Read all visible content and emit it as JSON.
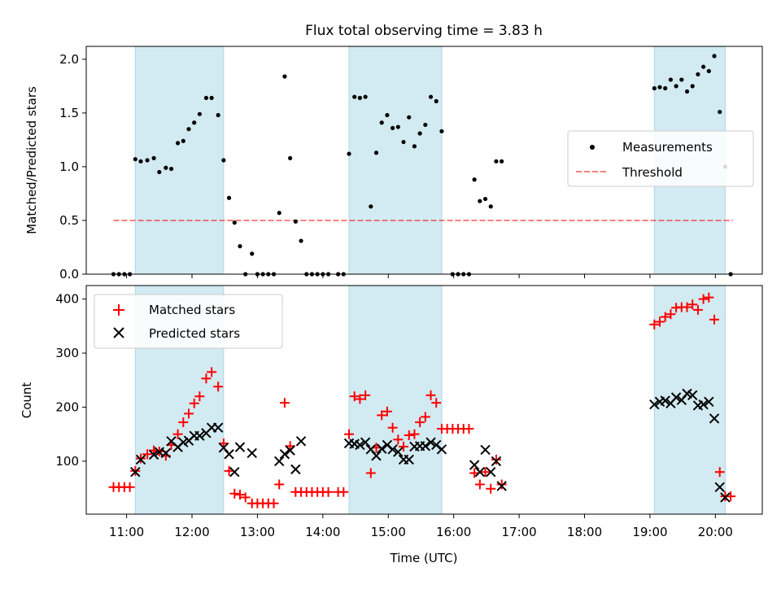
{
  "title": "Flux total observing time = 3.83 h",
  "colors": {
    "shade": "#add8e6",
    "measurement": "#000000",
    "threshold": "#ff0000",
    "matched": "#ff0000",
    "predicted": "#000000"
  },
  "chart_data": [
    {
      "type": "scatter",
      "panel": "top",
      "title": "Flux total observing time = 3.83 h",
      "xlabel": "",
      "ylabel": "Matched/Predicted stars",
      "xlim": [
        "10:23",
        "20:43"
      ],
      "ylim": [
        0,
        2.12
      ],
      "yticks": [
        0.0,
        0.5,
        1.0,
        1.5,
        2.0
      ],
      "ytick_labels": [
        "0.0",
        "0.5",
        "1.0",
        "1.5",
        "2.0"
      ],
      "grid": false,
      "legend": "center-right",
      "shaded_intervals": [
        [
          "11:08",
          "12:29"
        ],
        [
          "14:24",
          "15:49"
        ],
        [
          "19:04",
          "20:09"
        ]
      ],
      "threshold": {
        "name": "Threshold",
        "y": 0.5,
        "x_range": [
          "10:48",
          "20:16"
        ],
        "style": "dashed"
      },
      "series": [
        {
          "name": "Measurements",
          "marker": "dot",
          "points": [
            [
              "10:48",
              0.0
            ],
            [
              "10:53",
              0.0
            ],
            [
              "10:58",
              0.0
            ],
            [
              "11:03",
              0.0
            ],
            [
              "11:08",
              1.07
            ],
            [
              "11:13",
              1.05
            ],
            [
              "11:19",
              1.06
            ],
            [
              "11:25",
              1.08
            ],
            [
              "11:30",
              0.95
            ],
            [
              "11:36",
              0.99
            ],
            [
              "11:41",
              0.98
            ],
            [
              "11:47",
              1.22
            ],
            [
              "11:52",
              1.24
            ],
            [
              "11:57",
              1.35
            ],
            [
              "12:02",
              1.41
            ],
            [
              "12:07",
              1.49
            ],
            [
              "12:13",
              1.64
            ],
            [
              "12:18",
              1.64
            ],
            [
              "12:24",
              1.48
            ],
            [
              "12:29",
              1.06
            ],
            [
              "12:34",
              0.71
            ],
            [
              "12:39",
              0.48
            ],
            [
              "12:44",
              0.26
            ],
            [
              "12:49",
              0.0
            ],
            [
              "12:55",
              0.19
            ],
            [
              "13:00",
              0.0
            ],
            [
              "13:05",
              0.0
            ],
            [
              "13:10",
              0.0
            ],
            [
              "13:15",
              0.0
            ],
            [
              "13:20",
              0.57
            ],
            [
              "13:25",
              1.84
            ],
            [
              "13:30",
              1.08
            ],
            [
              "13:35",
              0.49
            ],
            [
              "13:40",
              0.31
            ],
            [
              "13:45",
              0.0
            ],
            [
              "13:50",
              0.0
            ],
            [
              "13:55",
              0.0
            ],
            [
              "14:00",
              0.0
            ],
            [
              "14:05",
              0.0
            ],
            [
              "14:14",
              0.0
            ],
            [
              "14:19",
              0.0
            ],
            [
              "14:24",
              1.12
            ],
            [
              "14:29",
              1.65
            ],
            [
              "14:34",
              1.64
            ],
            [
              "14:39",
              1.65
            ],
            [
              "14:44",
              0.63
            ],
            [
              "14:49",
              1.13
            ],
            [
              "14:54",
              1.41
            ],
            [
              "14:59",
              1.48
            ],
            [
              "15:04",
              1.36
            ],
            [
              "15:09",
              1.37
            ],
            [
              "15:14",
              1.23
            ],
            [
              "15:19",
              1.46
            ],
            [
              "15:24",
              1.19
            ],
            [
              "15:29",
              1.31
            ],
            [
              "15:34",
              1.39
            ],
            [
              "15:39",
              1.65
            ],
            [
              "15:44",
              1.61
            ],
            [
              "15:49",
              1.33
            ],
            [
              "15:59",
              0.0
            ],
            [
              "16:04",
              0.0
            ],
            [
              "16:09",
              0.0
            ],
            [
              "16:14",
              0.0
            ],
            [
              "16:19",
              0.88
            ],
            [
              "16:24",
              0.68
            ],
            [
              "16:29",
              0.7
            ],
            [
              "16:34",
              0.63
            ],
            [
              "16:39",
              1.05
            ],
            [
              "16:44",
              1.05
            ],
            [
              "19:04",
              1.73
            ],
            [
              "19:09",
              1.74
            ],
            [
              "19:14",
              1.73
            ],
            [
              "19:19",
              1.81
            ],
            [
              "19:24",
              1.75
            ],
            [
              "19:29",
              1.81
            ],
            [
              "19:34",
              1.7
            ],
            [
              "19:39",
              1.75
            ],
            [
              "19:44",
              1.86
            ],
            [
              "19:49",
              1.93
            ],
            [
              "19:54",
              1.89
            ],
            [
              "19:59",
              2.03
            ],
            [
              "20:04",
              1.51
            ],
            [
              "20:09",
              1.0
            ],
            [
              "20:14",
              0.0
            ]
          ]
        }
      ]
    },
    {
      "type": "scatter",
      "panel": "bottom",
      "title": "",
      "xlabel": "Time (UTC)",
      "ylabel": "Count",
      "xlim": [
        "10:23",
        "20:43"
      ],
      "ylim": [
        2,
        425
      ],
      "yticks": [
        100,
        200,
        300,
        400
      ],
      "ytick_labels": [
        "100",
        "200",
        "300",
        "400"
      ],
      "xtick_labels": [
        "11:00",
        "12:00",
        "13:00",
        "14:00",
        "15:00",
        "16:00",
        "17:00",
        "18:00",
        "19:00",
        "20:00"
      ],
      "grid": false,
      "legend": "top-left",
      "shaded_intervals": [
        [
          "11:08",
          "12:29"
        ],
        [
          "14:24",
          "15:49"
        ],
        [
          "19:04",
          "20:09"
        ]
      ],
      "series": [
        {
          "name": "Matched stars",
          "marker": "plus",
          "points": [
            [
              "10:48",
              52
            ],
            [
              "10:53",
              52
            ],
            [
              "10:58",
              52
            ],
            [
              "11:03",
              52
            ],
            [
              "11:08",
              82
            ],
            [
              "11:13",
              105
            ],
            [
              "11:19",
              113
            ],
            [
              "11:25",
              120
            ],
            [
              "11:30",
              118
            ],
            [
              "11:36",
              110
            ],
            [
              "11:41",
              130
            ],
            [
              "11:47",
              150
            ],
            [
              "11:52",
              172
            ],
            [
              "11:57",
              188
            ],
            [
              "12:02",
              207
            ],
            [
              "12:07",
              220
            ],
            [
              "12:13",
              253
            ],
            [
              "12:18",
              265
            ],
            [
              "12:24",
              238
            ],
            [
              "12:29",
              133
            ],
            [
              "12:34",
              82
            ],
            [
              "12:39",
              40
            ],
            [
              "12:44",
              38
            ],
            [
              "12:49",
              33
            ],
            [
              "12:55",
              22
            ],
            [
              "13:00",
              22
            ],
            [
              "13:05",
              22
            ],
            [
              "13:10",
              22
            ],
            [
              "13:15",
              22
            ],
            [
              "13:20",
              57
            ],
            [
              "13:25",
              208
            ],
            [
              "13:30",
              128
            ],
            [
              "13:35",
              43
            ],
            [
              "13:40",
              43
            ],
            [
              "13:45",
              43
            ],
            [
              "13:50",
              43
            ],
            [
              "13:55",
              43
            ],
            [
              "14:00",
              43
            ],
            [
              "14:05",
              43
            ],
            [
              "14:14",
              43
            ],
            [
              "14:19",
              43
            ],
            [
              "14:24",
              150
            ],
            [
              "14:29",
              220
            ],
            [
              "14:34",
              215
            ],
            [
              "14:39",
              222
            ],
            [
              "14:44",
              78
            ],
            [
              "14:49",
              125
            ],
            [
              "14:54",
              185
            ],
            [
              "14:59",
              192
            ],
            [
              "15:04",
              162
            ],
            [
              "15:09",
              140
            ],
            [
              "15:14",
              127
            ],
            [
              "15:19",
              148
            ],
            [
              "15:24",
              150
            ],
            [
              "15:29",
              172
            ],
            [
              "15:34",
              182
            ],
            [
              "15:39",
              222
            ],
            [
              "15:44",
              208
            ],
            [
              "15:49",
              160
            ],
            [
              "15:54",
              160
            ],
            [
              "15:59",
              160
            ],
            [
              "16:04",
              160
            ],
            [
              "16:09",
              160
            ],
            [
              "16:14",
              160
            ],
            [
              "16:19",
              78
            ],
            [
              "16:24",
              57
            ],
            [
              "16:29",
              80
            ],
            [
              "16:34",
              49
            ],
            [
              "16:39",
              103
            ],
            [
              "16:44",
              57
            ],
            [
              "19:04",
              353
            ],
            [
              "19:09",
              358
            ],
            [
              "19:14",
              367
            ],
            [
              "19:19",
              372
            ],
            [
              "19:24",
              384
            ],
            [
              "19:29",
              385
            ],
            [
              "19:34",
              385
            ],
            [
              "19:39",
              390
            ],
            [
              "19:44",
              380
            ],
            [
              "19:49",
              400
            ],
            [
              "19:54",
              403
            ],
            [
              "19:59",
              362
            ],
            [
              "20:04",
              80
            ],
            [
              "20:09",
              35
            ],
            [
              "20:14",
              35
            ]
          ]
        },
        {
          "name": "Predicted stars",
          "marker": "x",
          "points": [
            [
              "11:08",
              80
            ],
            [
              "11:13",
              103
            ],
            [
              "11:25",
              112
            ],
            [
              "11:30",
              117
            ],
            [
              "11:36",
              115
            ],
            [
              "11:41",
              137
            ],
            [
              "11:47",
              126
            ],
            [
              "11:52",
              135
            ],
            [
              "11:57",
              138
            ],
            [
              "12:02",
              147
            ],
            [
              "12:07",
              147
            ],
            [
              "12:13",
              152
            ],
            [
              "12:18",
              162
            ],
            [
              "12:24",
              162
            ],
            [
              "12:29",
              125
            ],
            [
              "12:34",
              113
            ],
            [
              "12:39",
              80
            ],
            [
              "12:44",
              126
            ],
            [
              "12:55",
              115
            ],
            [
              "13:20",
              100
            ],
            [
              "13:25",
              113
            ],
            [
              "13:30",
              120
            ],
            [
              "13:35",
              85
            ],
            [
              "13:40",
              137
            ],
            [
              "14:24",
              133
            ],
            [
              "14:29",
              132
            ],
            [
              "14:34",
              130
            ],
            [
              "14:39",
              135
            ],
            [
              "14:44",
              122
            ],
            [
              "14:49",
              110
            ],
            [
              "14:54",
              123
            ],
            [
              "14:59",
              130
            ],
            [
              "15:04",
              122
            ],
            [
              "15:09",
              117
            ],
            [
              "15:14",
              103
            ],
            [
              "15:19",
              103
            ],
            [
              "15:24",
              127
            ],
            [
              "15:29",
              128
            ],
            [
              "15:34",
              128
            ],
            [
              "15:39",
              135
            ],
            [
              "15:44",
              130
            ],
            [
              "15:49",
              122
            ],
            [
              "16:19",
              93
            ],
            [
              "16:24",
              80
            ],
            [
              "16:29",
              121
            ],
            [
              "16:34",
              80
            ],
            [
              "16:39",
              100
            ],
            [
              "16:44",
              54
            ],
            [
              "19:04",
              205
            ],
            [
              "19:09",
              210
            ],
            [
              "19:14",
              212
            ],
            [
              "19:19",
              207
            ],
            [
              "19:24",
              218
            ],
            [
              "19:29",
              213
            ],
            [
              "19:34",
              225
            ],
            [
              "19:39",
              222
            ],
            [
              "19:44",
              203
            ],
            [
              "19:49",
              205
            ],
            [
              "19:54",
              210
            ],
            [
              "19:59",
              179
            ],
            [
              "20:04",
              52
            ],
            [
              "20:09",
              33
            ]
          ]
        }
      ]
    }
  ]
}
